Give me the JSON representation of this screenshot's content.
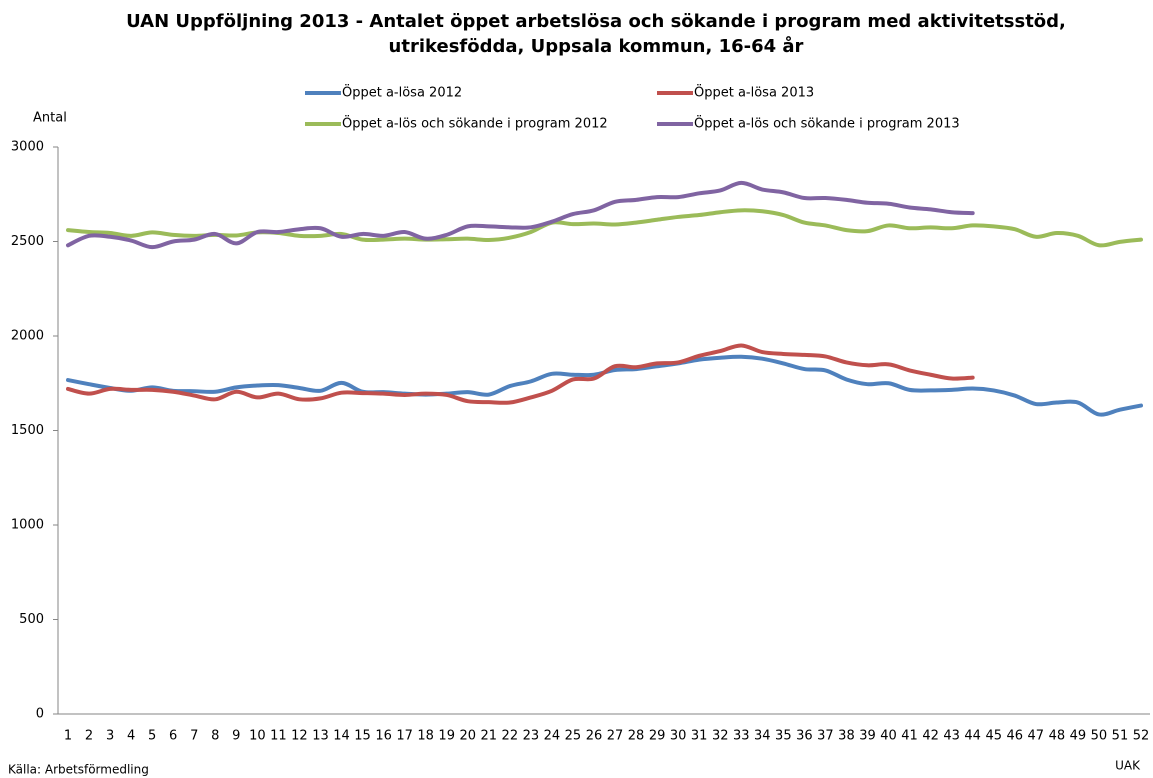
{
  "chart_data": {
    "type": "line",
    "title": [
      "UAN Uppföljning 2013 - Antalet öppet arbetslösa och sökande i program med aktivitetsstöd,",
      "utrikesfödda, Uppsala kommun, 16-64 år"
    ],
    "y_label": "Antal",
    "source": "Källa: Arbetsförmedling",
    "note": "UAK",
    "categories": [
      1,
      2,
      3,
      4,
      5,
      6,
      7,
      8,
      9,
      10,
      11,
      12,
      13,
      14,
      15,
      16,
      17,
      18,
      19,
      20,
      21,
      22,
      23,
      24,
      25,
      26,
      27,
      28,
      29,
      30,
      31,
      32,
      33,
      34,
      35,
      36,
      37,
      38,
      39,
      40,
      41,
      42,
      43,
      44,
      45,
      46,
      47,
      48,
      49,
      50,
      51,
      52
    ],
    "ylim": [
      0,
      3000
    ],
    "yticks": [
      0,
      500,
      1000,
      1500,
      2000,
      2500,
      3000
    ],
    "series": [
      {
        "name": "Öppet a-lösa 2012",
        "color": "#4f81bd",
        "values": [
          1767,
          1745,
          1725,
          1710,
          1728,
          1710,
          1708,
          1705,
          1728,
          1738,
          1740,
          1725,
          1710,
          1752,
          1705,
          1703,
          1695,
          1690,
          1695,
          1703,
          1690,
          1735,
          1760,
          1800,
          1795,
          1795,
          1820,
          1825,
          1840,
          1855,
          1875,
          1885,
          1890,
          1880,
          1855,
          1825,
          1818,
          1770,
          1745,
          1750,
          1715,
          1712,
          1715,
          1722,
          1712,
          1685,
          1640,
          1648,
          1648,
          1585,
          1610,
          1632
        ]
      },
      {
        "name": "Öppet a-lösa 2013",
        "color": "#c0504d",
        "values": [
          1720,
          1695,
          1720,
          1715,
          1715,
          1705,
          1685,
          1665,
          1705,
          1675,
          1695,
          1665,
          1670,
          1700,
          1698,
          1695,
          1688,
          1695,
          1688,
          1655,
          1650,
          1648,
          1675,
          1710,
          1770,
          1775,
          1840,
          1835,
          1855,
          1860,
          1895,
          1920,
          1950,
          1915,
          1905,
          1900,
          1892,
          1860,
          1845,
          1850,
          1818,
          1795,
          1775,
          1780,
          null,
          null,
          null,
          null,
          null,
          null,
          null,
          null
        ]
      },
      {
        "name": "Öppet a-lös och sökande i program 2012",
        "color": "#9bbb59",
        "values": [
          2560,
          2550,
          2545,
          2530,
          2548,
          2535,
          2530,
          2535,
          2532,
          2548,
          2545,
          2530,
          2530,
          2540,
          2510,
          2510,
          2515,
          2510,
          2512,
          2515,
          2508,
          2520,
          2550,
          2600,
          2592,
          2595,
          2590,
          2600,
          2615,
          2630,
          2640,
          2655,
          2665,
          2660,
          2640,
          2600,
          2585,
          2560,
          2555,
          2585,
          2570,
          2575,
          2570,
          2585,
          2580,
          2565,
          2525,
          2545,
          2530,
          2480,
          2498,
          2510
        ]
      },
      {
        "name": "Öppet a-lös och sökande i program 2013",
        "color": "#8064a2",
        "values": [
          2480,
          2530,
          2525,
          2505,
          2470,
          2500,
          2510,
          2540,
          2490,
          2550,
          2550,
          2565,
          2570,
          2525,
          2540,
          2530,
          2550,
          2515,
          2535,
          2580,
          2580,
          2575,
          2575,
          2605,
          2645,
          2665,
          2710,
          2720,
          2735,
          2735,
          2755,
          2770,
          2810,
          2775,
          2760,
          2730,
          2730,
          2720,
          2705,
          2700,
          2680,
          2670,
          2655,
          2650,
          null,
          null,
          null,
          null,
          null,
          null,
          null,
          null
        ]
      }
    ]
  }
}
